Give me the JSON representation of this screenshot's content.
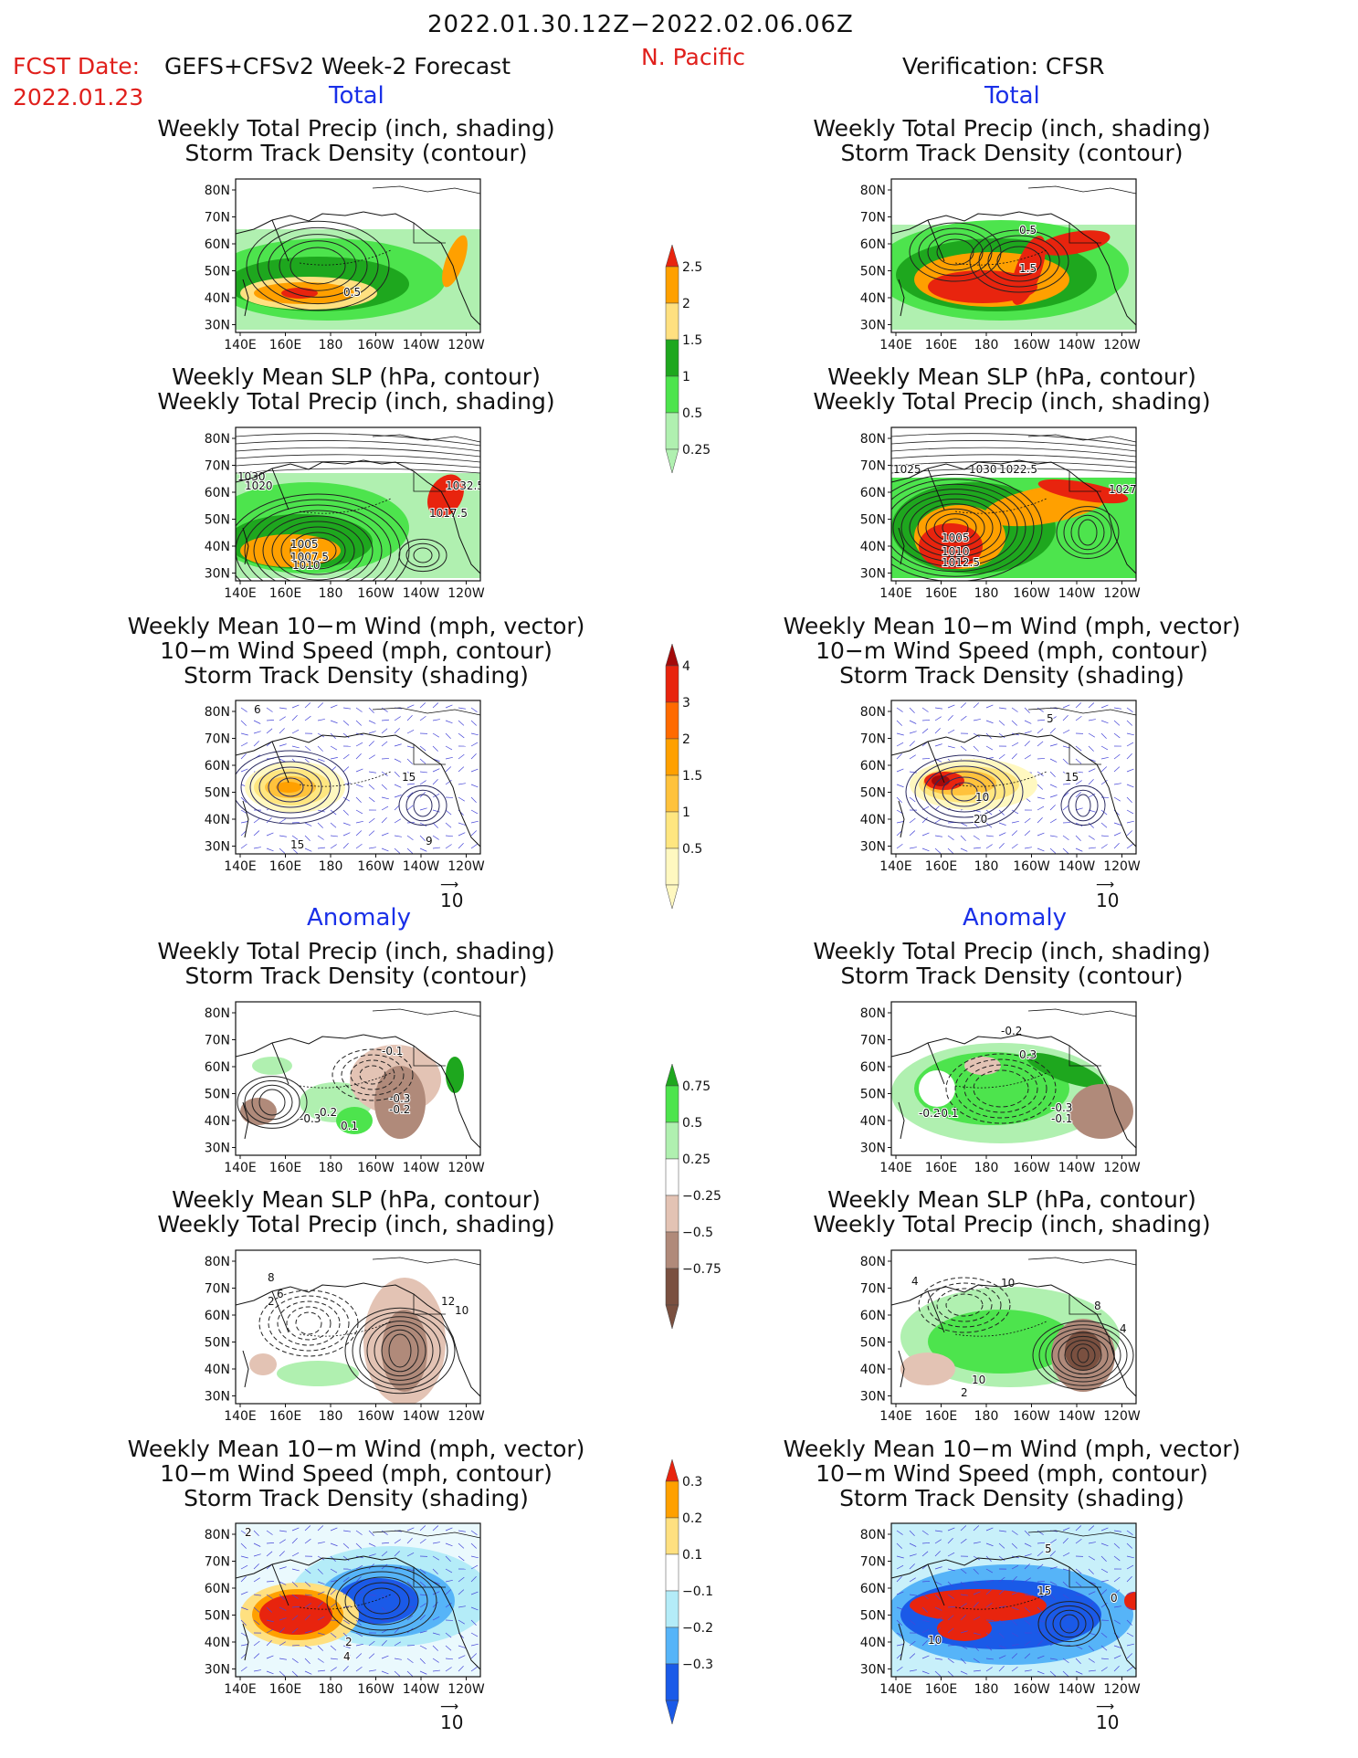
{
  "header": {
    "date_range": "2022.01.30.12Z−2022.02.06.06Z",
    "region": "N. Pacific",
    "fcst_label": "FCST Date:",
    "fcst_source": "GEFS+CFSv2 Week-2 Forecast",
    "fcst_date": "2022.01.23",
    "verification": "Verification: CFSR"
  },
  "sections": {
    "total": "Total",
    "anomaly": "Anomaly"
  },
  "panel_titles": {
    "precip_track": [
      "Weekly Total Precip (inch, shading)",
      "Storm Track Density (contour)"
    ],
    "slp_precip": [
      "Weekly Mean SLP (hPa, contour)",
      "Weekly Total Precip (inch, shading)"
    ],
    "wind_track": [
      "Weekly Mean 10−m Wind (mph, vector)",
      "10−m Wind Speed (mph, contour)",
      "Storm Track Density (shading)"
    ]
  },
  "axes": {
    "lat_labels": [
      "80N",
      "70N",
      "60N",
      "50N",
      "40N",
      "30N"
    ],
    "lon_labels": [
      "140E",
      "160E",
      "180",
      "160W",
      "140W",
      "120W"
    ]
  },
  "vector_ref": "10",
  "colorbars": {
    "precip_total": {
      "labels": [
        "2.5",
        "2",
        "1.5",
        "1",
        "0.5",
        "0.25"
      ],
      "colors": [
        "#e8240e",
        "#ffa000",
        "#ffe080",
        "#1ea71e",
        "#4de44d",
        "#b0f0b0"
      ]
    },
    "track_total": {
      "labels": [
        "4",
        "3",
        "2",
        "1.5",
        "1",
        "0.5"
      ],
      "colors": [
        "#a30a0a",
        "#e8240e",
        "#ff6a00",
        "#ffa000",
        "#ffc23c",
        "#ffe680",
        "#fff8c0"
      ]
    },
    "precip_anom": {
      "labels": [
        "0.75",
        "0.5",
        "0.25",
        "−0.25",
        "−0.5",
        "−0.75"
      ],
      "colors": [
        "#1ea71e",
        "#4de44d",
        "#b0f0b0",
        "#ffffff",
        "#e3c3b4",
        "#b08a7a",
        "#7a5040"
      ]
    },
    "track_anom": {
      "labels": [
        "0.3",
        "0.2",
        "0.1",
        "−0.1",
        "−0.2",
        "−0.3"
      ],
      "colors": [
        "#e8240e",
        "#ffa000",
        "#ffe080",
        "#ffffff",
        "#b4ecf8",
        "#56b4f8",
        "#1a5ae8"
      ]
    }
  },
  "contour_labels": {
    "f_total_precip": [
      "0.5"
    ],
    "v_total_precip": [
      "0.5",
      "1.5"
    ],
    "f_total_slp": [
      "1030",
      "1020",
      "1032.5",
      "1017.5",
      "1005",
      "1007.5",
      "1010"
    ],
    "v_total_slp": [
      "1025",
      "1030",
      "1022.5",
      "1027.5",
      "1005",
      "1010",
      "1012.5"
    ],
    "f_total_wind": [
      "6",
      "15",
      "9",
      "15"
    ],
    "v_total_wind": [
      "5",
      "15",
      "10",
      "20"
    ],
    "f_anom_precip": [
      "-0.1",
      "-0.3",
      "-0.2",
      "0.2",
      "-0.3",
      "0.1"
    ],
    "v_anom_precip": [
      "-0.2",
      "0.3",
      "-0.3",
      "-0.1",
      "-0.2",
      "-0.1"
    ],
    "f_anom_slp": [
      "8",
      "6",
      "2",
      "12",
      "10"
    ],
    "v_anom_slp": [
      "4",
      "10",
      "8",
      "4",
      "10",
      "2"
    ],
    "f_anom_wind": [
      "2",
      "2",
      "4"
    ],
    "v_anom_wind": [
      "5",
      "0",
      "15",
      "10"
    ]
  }
}
